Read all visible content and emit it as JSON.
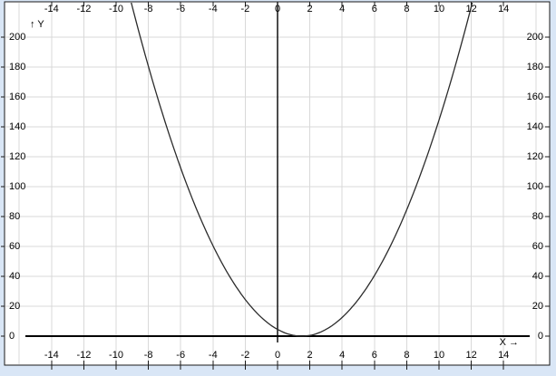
{
  "window": {
    "background_color": "#d9e6f6"
  },
  "chart": {
    "plot_background_color": "#ffffff",
    "grid_color": "#d9d9d9",
    "frame_color": "#1a1a1a",
    "axis_color": "#000000",
    "curve_color": "#2b2b2b",
    "text_color": "#000000",
    "y_axis_label": "↑ Y",
    "x_axis_label": "X →"
  },
  "chart_data": {
    "type": "line",
    "title": "",
    "xlabel": "X →",
    "ylabel": "↑ Y",
    "xlim": [
      -16.9,
      16.9
    ],
    "ylim": [
      -19.4,
      223.6
    ],
    "grid": true,
    "x_ticks": [
      -14,
      -12,
      -10,
      -8,
      -6,
      -4,
      -2,
      0,
      2,
      4,
      6,
      8,
      10,
      12,
      14
    ],
    "x_tick_sides": "top and bottom",
    "y_ticks": [
      0,
      20,
      40,
      60,
      80,
      100,
      120,
      140,
      160,
      180,
      200
    ],
    "y_tick_sides": "left and right",
    "x_grid_values": [
      -16,
      -14,
      -12,
      -10,
      -8,
      -6,
      -4,
      -2,
      2,
      4,
      6,
      8,
      10,
      12,
      14,
      16
    ],
    "y_grid_values": [
      20,
      40,
      60,
      80,
      100,
      120,
      140,
      160,
      180,
      200
    ],
    "series": [
      {
        "name": "parabola",
        "function_estimate": "y = 2(x - 1.5)^2",
        "fit": {
          "a": 2,
          "h": 1.5,
          "k": 0
        },
        "vertex": [
          1.5,
          0
        ],
        "points": [
          [
            -9,
            220.5
          ],
          [
            -8,
            180.5
          ],
          [
            -7,
            144.5
          ],
          [
            -6,
            112.5
          ],
          [
            -5,
            84.5
          ],
          [
            -4,
            60.5
          ],
          [
            -3,
            40.5
          ],
          [
            -2,
            24.5
          ],
          [
            -1,
            12.5
          ],
          [
            0,
            4.5
          ],
          [
            1,
            0.5
          ],
          [
            1.5,
            0
          ],
          [
            2,
            0.5
          ],
          [
            3,
            4.5
          ],
          [
            4,
            12.5
          ],
          [
            5,
            24.5
          ],
          [
            6,
            40.5
          ],
          [
            7,
            60.5
          ],
          [
            8,
            84.5
          ],
          [
            9,
            112.5
          ],
          [
            10,
            144.5
          ],
          [
            11,
            180.5
          ],
          [
            12,
            220.5
          ]
        ]
      }
    ],
    "legend": null
  }
}
